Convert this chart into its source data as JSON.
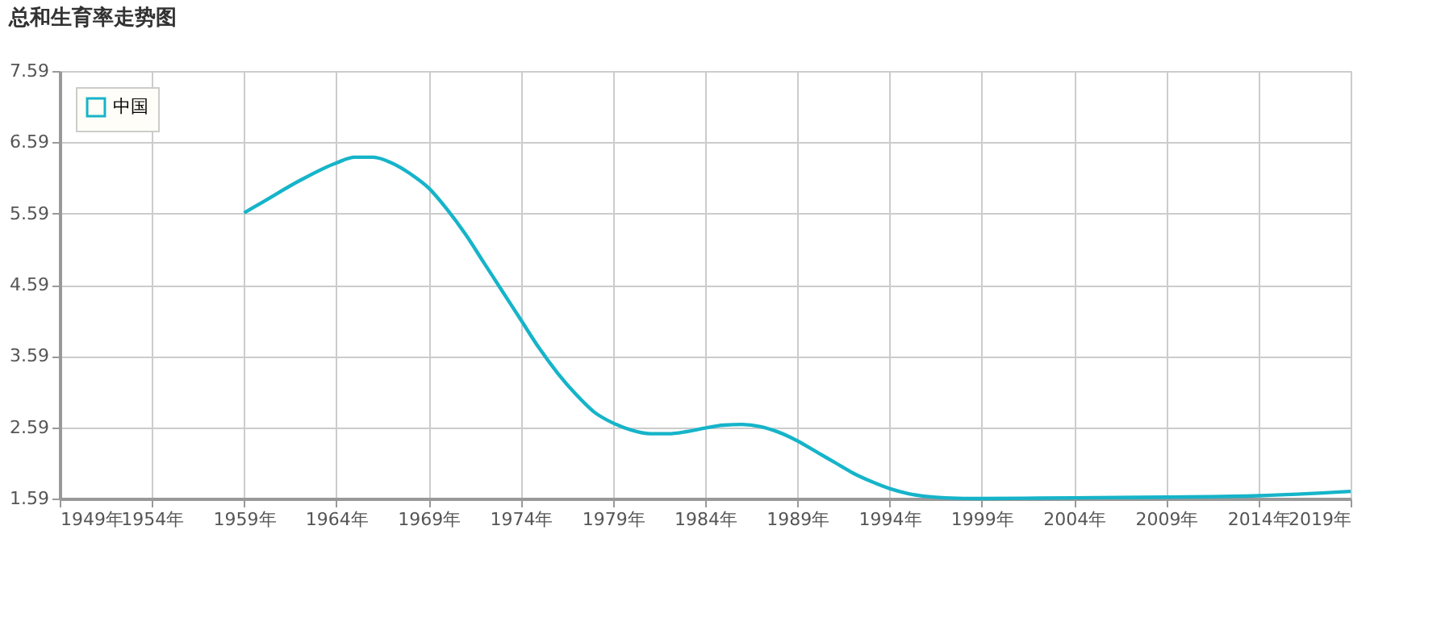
{
  "chart_data": {
    "type": "line",
    "title": "总和生育率走势图",
    "x": [
      1959,
      1960,
      1962,
      1964,
      1965,
      1966,
      1967,
      1968,
      1969,
      1970,
      1971,
      1972,
      1973,
      1974,
      1975,
      1976,
      1977,
      1978,
      1979,
      1980,
      1981,
      1982,
      1983,
      1984,
      1985,
      1986,
      1987,
      1988,
      1989,
      1990,
      1991,
      1992,
      1993,
      1994,
      1995,
      1996,
      1997,
      1999,
      2004,
      2009,
      2014,
      2019
    ],
    "series": [
      {
        "name": "中国",
        "color": "#16b4c9",
        "values": [
          5.6,
          5.75,
          6.05,
          6.3,
          6.38,
          6.38,
          6.3,
          6.15,
          5.95,
          5.65,
          5.3,
          4.9,
          4.5,
          4.1,
          3.7,
          3.35,
          3.05,
          2.8,
          2.65,
          2.55,
          2.5,
          2.5,
          2.53,
          2.58,
          2.62,
          2.63,
          2.6,
          2.52,
          2.4,
          2.25,
          2.1,
          1.95,
          1.83,
          1.73,
          1.66,
          1.62,
          1.6,
          1.59,
          1.6,
          1.61,
          1.63,
          1.69
        ]
      }
    ],
    "xlim": [
      1949,
      2019
    ],
    "xticks": [
      {
        "value": 1949,
        "label": "1949年"
      },
      {
        "value": 1954,
        "label": "1954年"
      },
      {
        "value": 1959,
        "label": "1959年"
      },
      {
        "value": 1964,
        "label": "1964年"
      },
      {
        "value": 1969,
        "label": "1969年"
      },
      {
        "value": 1974,
        "label": "1974年"
      },
      {
        "value": 1979,
        "label": "1979年"
      },
      {
        "value": 1984,
        "label": "1984年"
      },
      {
        "value": 1989,
        "label": "1989年"
      },
      {
        "value": 1994,
        "label": "1994年"
      },
      {
        "value": 1999,
        "label": "1999年"
      },
      {
        "value": 2004,
        "label": "2004年"
      },
      {
        "value": 2009,
        "label": "2009年"
      },
      {
        "value": 2014,
        "label": "2014年"
      },
      {
        "value": 2019,
        "label": "2019年"
      }
    ],
    "ylim": [
      1.59,
      7.59
    ],
    "yticks": [
      1.59,
      2.59,
      3.59,
      4.59,
      5.59,
      6.59,
      7.59
    ],
    "grid": true,
    "legend": "top left",
    "marker": "none",
    "line_style": "solid"
  }
}
